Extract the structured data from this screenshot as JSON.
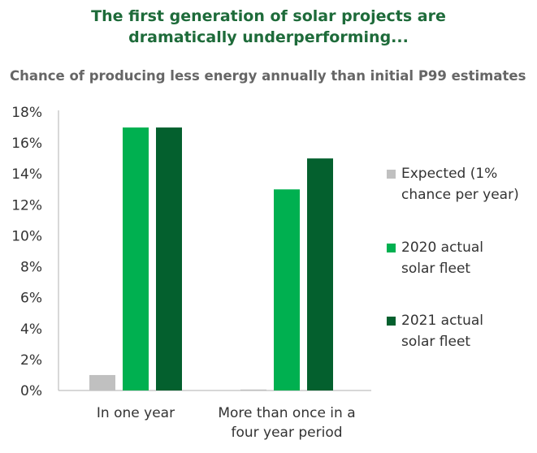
{
  "title_line1": "The first generation of solar projects are",
  "title_line2": "dramatically underperforming...",
  "subtitle": "Chance of producing less energy annually than initial P99 estimates",
  "colors": {
    "title": "#1e6b3a",
    "subtitle": "#666666",
    "axis": "#bfbfbf",
    "text": "#333333"
  },
  "chart_data": {
    "type": "bar",
    "categories": [
      [
        "In one year"
      ],
      [
        "More than once in a",
        "four year period"
      ]
    ],
    "series": [
      {
        "name_lines": [
          "Expected (1%",
          "chance per year)"
        ],
        "color": "#c0c0c0",
        "values": [
          1,
          0
        ]
      },
      {
        "name_lines": [
          "2020 actual",
          "solar fleet"
        ],
        "color": "#00b050",
        "values": [
          17,
          13
        ]
      },
      {
        "name_lines": [
          "2021 actual",
          "solar fleet"
        ],
        "color": "#04602e",
        "values": [
          17,
          15
        ]
      }
    ],
    "ylim": [
      0,
      18
    ],
    "y_ticks": [
      0,
      2,
      4,
      6,
      8,
      10,
      12,
      14,
      16,
      18
    ],
    "y_tick_format": "%",
    "grid": false,
    "legend_position": "right"
  }
}
